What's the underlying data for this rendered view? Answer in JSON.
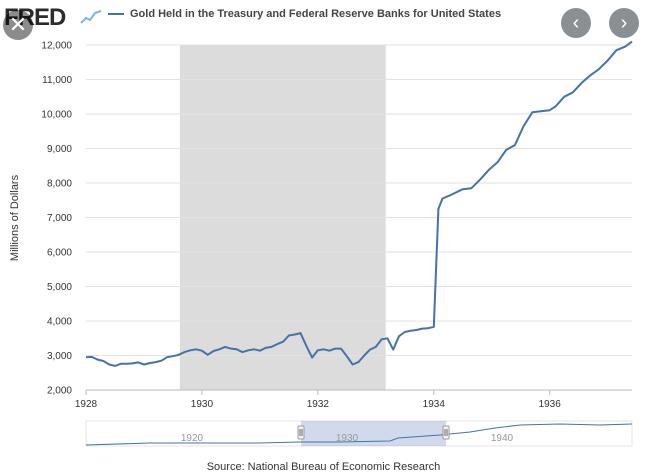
{
  "header": {
    "logo_text": "FRED",
    "title": "Gold Held in the Treasury and Federal Reserve Banks for United States",
    "colors": {
      "series": "#4572a7",
      "recession": "#dcdcdc",
      "nav_button": "#8a8f94"
    }
  },
  "controls": {
    "close_icon": "close-icon",
    "prev_icon": "chevron-left-icon",
    "next_icon": "chevron-right-icon",
    "close_glyph": "✕",
    "prev_glyph": "‹",
    "next_glyph": "›"
  },
  "navigator": {
    "labels": [
      "1920",
      "1930",
      "1940"
    ]
  },
  "source": "Source: National Bureau of Economic Research",
  "chart_data": {
    "type": "line",
    "title": "Gold Held in the Treasury and Federal Reserve Banks for United States",
    "ylabel": "Millions of Dollars",
    "xlabel": "",
    "ylim": [
      2000,
      12000
    ],
    "xlim": [
      1928.0,
      1937.42
    ],
    "yticks": [
      2000,
      3000,
      4000,
      5000,
      6000,
      7000,
      8000,
      9000,
      10000,
      11000,
      12000
    ],
    "ytick_labels": [
      "2,000",
      "3,000",
      "4,000",
      "5,000",
      "6,000",
      "7,000",
      "8,000",
      "9,000",
      "10,000",
      "11,000",
      "12,000"
    ],
    "xticks": [
      1928,
      1930,
      1932,
      1934,
      1936
    ],
    "xtick_labels": [
      "1928",
      "1930",
      "1932",
      "1934",
      "1936"
    ],
    "grid": "horizontal",
    "recession": {
      "start": 1929.62,
      "end": 1933.17
    },
    "series": [
      {
        "color": "#4572a7",
        "x": [
          1928.0,
          1928.1,
          1928.2,
          1928.3,
          1928.4,
          1928.5,
          1928.6,
          1928.7,
          1928.8,
          1928.9,
          1929.0,
          1929.1,
          1929.2,
          1929.3,
          1929.4,
          1929.5,
          1929.6,
          1929.7,
          1929.8,
          1929.9,
          1930.0,
          1930.1,
          1930.2,
          1930.3,
          1930.4,
          1930.5,
          1930.6,
          1930.7,
          1930.8,
          1930.9,
          1931.0,
          1931.1,
          1931.2,
          1931.3,
          1931.4,
          1931.5,
          1931.6,
          1931.7,
          1931.8,
          1931.9,
          1932.0,
          1932.1,
          1932.2,
          1932.3,
          1932.4,
          1932.5,
          1932.6,
          1932.7,
          1932.8,
          1932.9,
          1933.0,
          1933.1,
          1933.2,
          1933.3,
          1933.4,
          1933.5,
          1933.6,
          1933.7,
          1933.8,
          1933.9,
          1934.0,
          1934.08,
          1934.15,
          1934.25,
          1934.35,
          1934.5,
          1934.65,
          1934.8,
          1934.95,
          1935.1,
          1935.25,
          1935.4,
          1935.55,
          1935.7,
          1935.85,
          1936.0,
          1936.1,
          1936.25,
          1936.4,
          1936.55,
          1936.7,
          1936.85,
          1937.0,
          1937.15,
          1937.3,
          1937.42
        ],
        "values": [
          2950,
          2960,
          2880,
          2840,
          2740,
          2700,
          2760,
          2760,
          2770,
          2800,
          2740,
          2780,
          2810,
          2850,
          2950,
          2980,
          3020,
          3100,
          3150,
          3180,
          3140,
          3020,
          3130,
          3180,
          3250,
          3200,
          3180,
          3100,
          3150,
          3180,
          3140,
          3220,
          3250,
          3330,
          3400,
          3580,
          3610,
          3650,
          3280,
          2940,
          3150,
          3180,
          3140,
          3200,
          3200,
          2980,
          2740,
          2810,
          3000,
          3170,
          3250,
          3470,
          3500,
          3170,
          3560,
          3680,
          3720,
          3740,
          3780,
          3790,
          3830,
          7250,
          7550,
          7620,
          7700,
          7820,
          7850,
          8100,
          8380,
          8600,
          8960,
          9100,
          9650,
          10050,
          10080,
          10110,
          10220,
          10500,
          10630,
          10900,
          11120,
          11300,
          11550,
          11850,
          11950,
          12100
        ]
      }
    ]
  }
}
